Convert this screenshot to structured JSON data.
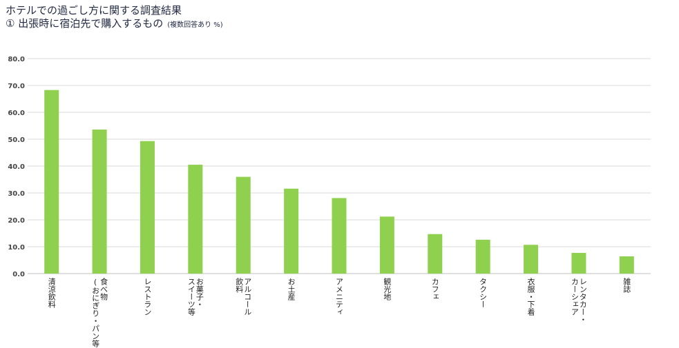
{
  "header": {
    "title": "ホテルでの過ごし方に関する調査結果",
    "subtitle": "① 出張時に宿泊先で購入するもの",
    "note": "(複数回答あり %)"
  },
  "chart_data": {
    "type": "bar",
    "categories": [
      [
        "清涼飲料"
      ],
      [
        "食べ物",
        "(おにぎり・パン等)"
      ],
      [
        "レストラン"
      ],
      [
        "お菓子・",
        "スイーツ等"
      ],
      [
        "アルコール",
        "飲料"
      ],
      [
        "お土産"
      ],
      [
        "アメニティ"
      ],
      [
        "観光地"
      ],
      [
        "カフェ"
      ],
      [
        "タクシー"
      ],
      [
        "衣服・下着"
      ],
      [
        "レンタカー・",
        "カーシェア"
      ],
      [
        "雑誌"
      ]
    ],
    "values": [
      68.3,
      53.6,
      49.3,
      40.5,
      36.0,
      31.6,
      28.1,
      21.2,
      14.7,
      12.6,
      10.7,
      7.7,
      6.4
    ],
    "ylim": [
      0,
      80
    ],
    "yticks": [
      "0.0",
      "10.0",
      "20.0",
      "30.0",
      "40.0",
      "50.0",
      "60.0",
      "70.0",
      "80.0"
    ],
    "bar_color": "#8fd14f",
    "grid": true,
    "legend": "none"
  }
}
